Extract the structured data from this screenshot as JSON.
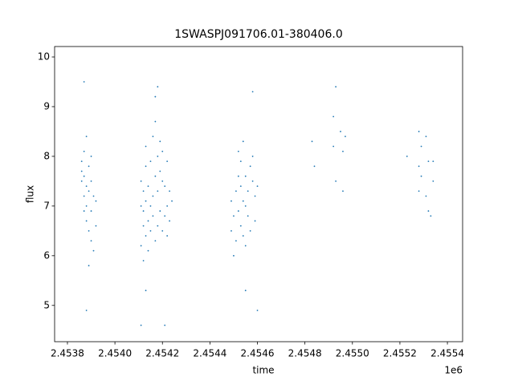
{
  "chart_data": {
    "type": "scatter",
    "title": "1SWASPJ091706.01-380406.0",
    "xlabel": "time",
    "ylabel": "flux",
    "x_offset_text": "1e6",
    "color": "#1f77b4",
    "grid": false,
    "xlim": [
      2.453746,
      2.455464
    ],
    "ylim": [
      4.27,
      10.21
    ],
    "xticks": [
      2.4538,
      {
        "value": 2.454,
        "label": "2.4540"
      },
      2.4542,
      2.4544,
      2.4546,
      2.4548,
      {
        "value": 2.455,
        "label": "2.4550"
      },
      2.4552,
      2.4554
    ],
    "yticks": [
      5,
      6,
      7,
      8,
      9,
      10
    ],
    "x": [
      2.45386,
      2.45386,
      2.45387,
      2.45387,
      2.45387,
      2.45387,
      2.45388,
      2.45388,
      2.45388,
      2.45388,
      2.45389,
      2.45389,
      2.45389,
      2.4539,
      2.4539,
      2.4539,
      2.45391,
      2.45391,
      2.45392,
      2.45392,
      2.45387,
      2.45388,
      2.45386,
      2.45389,
      2.4539,
      2.45411,
      2.45411,
      2.45411,
      2.45412,
      2.45412,
      2.45412,
      2.45412,
      2.45413,
      2.45413,
      2.45413,
      2.45413,
      2.45414,
      2.45414,
      2.45414,
      2.45415,
      2.45415,
      2.45415,
      2.45416,
      2.45416,
      2.45416,
      2.45417,
      2.45417,
      2.45417,
      2.45418,
      2.45418,
      2.45418,
      2.45419,
      2.45419,
      2.45419,
      2.4542,
      2.4542,
      2.4542,
      2.45421,
      2.45421,
      2.45422,
      2.45422,
      2.45422,
      2.45423,
      2.45423,
      2.45424,
      2.45411,
      2.45413,
      2.45418,
      2.45417,
      2.45421,
      2.45449,
      2.45449,
      2.4545,
      2.4545,
      2.45451,
      2.45451,
      2.45452,
      2.45452,
      2.45452,
      2.45453,
      2.45453,
      2.45453,
      2.45454,
      2.45454,
      2.45454,
      2.45455,
      2.45455,
      2.45455,
      2.45456,
      2.45456,
      2.45457,
      2.45457,
      2.45458,
      2.45458,
      2.45459,
      2.45459,
      2.4546,
      2.45455,
      2.45458,
      2.4546,
      2.45483,
      2.45484,
      2.45492,
      2.45492,
      2.45493,
      2.45493,
      2.45495,
      2.45496,
      2.45496,
      2.45497,
      2.45523,
      2.45528,
      2.45528,
      2.45528,
      2.45529,
      2.45529,
      2.45531,
      2.45531,
      2.45532,
      2.45532,
      2.45534,
      2.45534,
      2.45533
    ],
    "values": [
      7.5,
      7.9,
      7.2,
      8.1,
      6.9,
      7.6,
      7.4,
      8.4,
      6.7,
      7.0,
      7.3,
      6.5,
      7.8,
      6.9,
      6.3,
      7.5,
      6.1,
      7.2,
      6.6,
      7.1,
      9.5,
      4.9,
      7.7,
      5.8,
      8.0,
      6.2,
      7.0,
      7.5,
      6.6,
      7.3,
      5.9,
      6.9,
      7.8,
      6.4,
      7.1,
      8.2,
      6.7,
      7.4,
      6.1,
      7.0,
      7.9,
      6.5,
      8.4,
      7.2,
      6.8,
      8.7,
      7.6,
      6.3,
      8.0,
      7.3,
      6.6,
      8.3,
      7.7,
      6.9,
      7.5,
      8.1,
      6.5,
      7.4,
      6.8,
      7.9,
      7.0,
      6.4,
      7.3,
      6.7,
      7.1,
      4.6,
      5.3,
      9.4,
      9.2,
      4.6,
      6.5,
      7.1,
      6.0,
      6.8,
      7.3,
      6.3,
      7.6,
      8.1,
      6.9,
      7.4,
      6.6,
      7.9,
      7.1,
      6.4,
      8.3,
      7.6,
      6.2,
      7.0,
      7.3,
      6.8,
      7.8,
      6.5,
      7.5,
      8.0,
      7.2,
      6.7,
      7.4,
      5.3,
      9.3,
      4.9,
      8.3,
      7.8,
      8.2,
      8.8,
      9.4,
      7.5,
      8.5,
      7.3,
      8.1,
      8.4,
      8.0,
      8.5,
      7.8,
      7.3,
      8.2,
      7.6,
      8.4,
      7.2,
      7.9,
      6.9,
      7.9,
      7.5,
      6.8
    ]
  }
}
